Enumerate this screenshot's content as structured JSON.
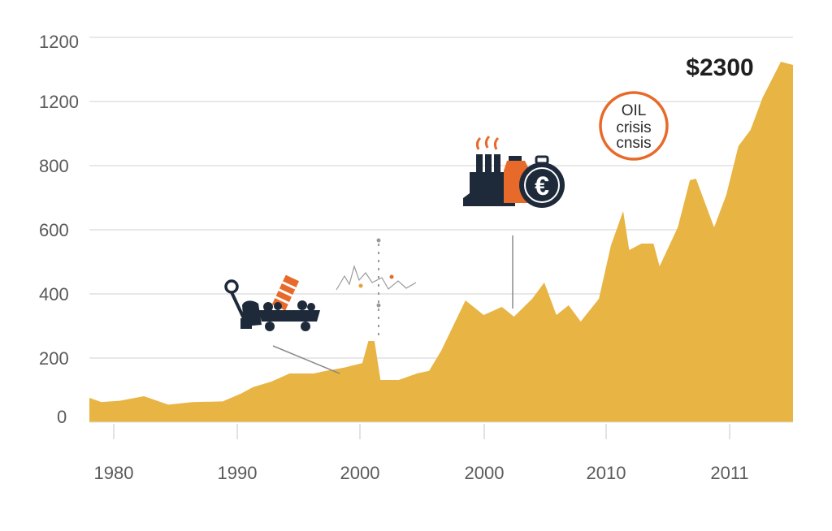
{
  "chart_data": {
    "type": "area",
    "title": "",
    "xlabel": "",
    "ylabel": "",
    "y_tick_labels": [
      "0",
      "200",
      "400",
      "600",
      "800",
      "1200",
      "1200"
    ],
    "x_tick_labels": [
      "1980",
      "1990",
      "2000",
      "2000",
      "2010",
      "2011"
    ],
    "grid": true,
    "legend": "none",
    "colors": {
      "area": "#E8B443",
      "grid": "#D9D9D9",
      "text": "#5A5A5A",
      "accent_orange": "#E86A2B",
      "navy": "#1E2A3A"
    },
    "series": [
      {
        "values": [
          {
            "x": 1978.0,
            "y": 75
          },
          {
            "x": 1979.0,
            "y": 62
          },
          {
            "x": 1980.5,
            "y": 66
          },
          {
            "x": 1982.5,
            "y": 80
          },
          {
            "x": 1984.5,
            "y": 54
          },
          {
            "x": 1986.5,
            "y": 62
          },
          {
            "x": 1989.0,
            "y": 64
          },
          {
            "x": 1990.5,
            "y": 88
          },
          {
            "x": 1991.5,
            "y": 108
          },
          {
            "x": 1993.0,
            "y": 125
          },
          {
            "x": 1994.5,
            "y": 150
          },
          {
            "x": 1996.5,
            "y": 150
          },
          {
            "x": 1997.5,
            "y": 158
          },
          {
            "x": 1999.0,
            "y": 168
          },
          {
            "x": 2000.5,
            "y": 182
          },
          {
            "x": 2001.0,
            "y": 250
          },
          {
            "x": 2001.5,
            "y": 250
          },
          {
            "x": 2002.0,
            "y": 130
          },
          {
            "x": 2003.5,
            "y": 130
          },
          {
            "x": 2005.0,
            "y": 150
          },
          {
            "x": 2006.0,
            "y": 158
          },
          {
            "x": 2007.0,
            "y": 220
          },
          {
            "x": 2009.0,
            "y": 375
          },
          {
            "x": 2010.5,
            "y": 330
          },
          {
            "x": 2012.0,
            "y": 355
          },
          {
            "x": 2013.0,
            "y": 325
          },
          {
            "x": 2014.5,
            "y": 380
          },
          {
            "x": 2015.5,
            "y": 430
          },
          {
            "x": 2016.5,
            "y": 330
          },
          {
            "x": 2017.5,
            "y": 360
          },
          {
            "x": 2018.5,
            "y": 310
          },
          {
            "x": 2020.0,
            "y": 380
          },
          {
            "x": 2021.0,
            "y": 545
          },
          {
            "x": 2022.0,
            "y": 650
          },
          {
            "x": 2022.5,
            "y": 530
          },
          {
            "x": 2023.5,
            "y": 550
          },
          {
            "x": 2024.5,
            "y": 550
          },
          {
            "x": 2025.0,
            "y": 480
          },
          {
            "x": 2026.5,
            "y": 600
          },
          {
            "x": 2027.5,
            "y": 745
          },
          {
            "x": 2028.0,
            "y": 750
          },
          {
            "x": 2029.5,
            "y": 600
          },
          {
            "x": 2030.5,
            "y": 700
          },
          {
            "x": 2031.5,
            "y": 850
          },
          {
            "x": 2032.5,
            "y": 900
          },
          {
            "x": 2033.5,
            "y": 1000
          },
          {
            "x": 2035.0,
            "y": 1110
          },
          {
            "x": 2036.0,
            "y": 1100
          }
        ]
      }
    ],
    "annotations": {
      "price_callout": "$2300",
      "badge_lines": [
        "OIL",
        "crisis",
        "cnsis"
      ]
    }
  }
}
